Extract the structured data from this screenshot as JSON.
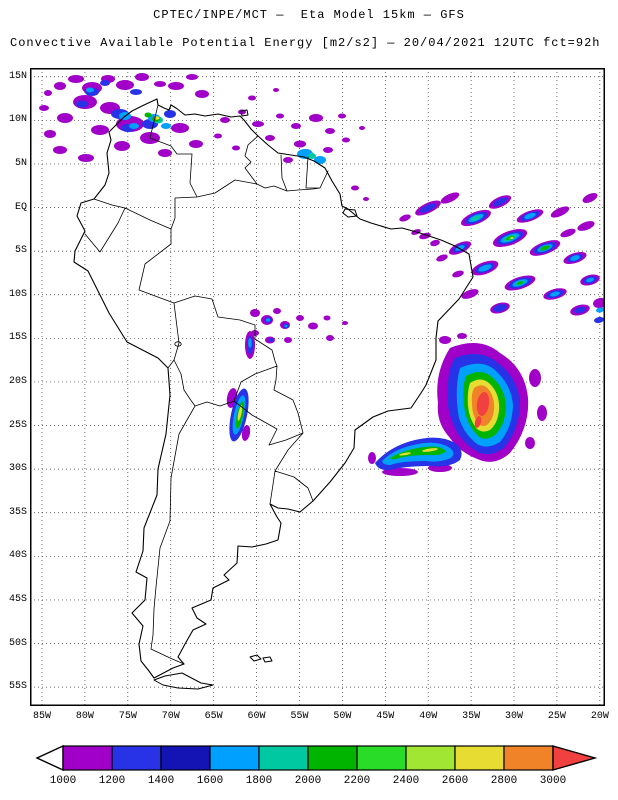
{
  "header": {
    "title": "CPTEC/INPE/MCT —  Eta Model 15km — GFS",
    "subtitle": "Convective Available Potential Energy [m2/s2] — 20/04/2021 12UTC fct=92h"
  },
  "map": {
    "lat_ticks": [
      {
        "label": "15N",
        "lat": 15
      },
      {
        "label": "10N",
        "lat": 10
      },
      {
        "label": "5N",
        "lat": 5
      },
      {
        "label": "EQ",
        "lat": 0
      },
      {
        "label": "5S",
        "lat": -5
      },
      {
        "label": "10S",
        "lat": -10
      },
      {
        "label": "15S",
        "lat": -15
      },
      {
        "label": "20S",
        "lat": -20
      },
      {
        "label": "25S",
        "lat": -25
      },
      {
        "label": "30S",
        "lat": -30
      },
      {
        "label": "35S",
        "lat": -35
      },
      {
        "label": "40S",
        "lat": -40
      },
      {
        "label": "45S",
        "lat": -45
      },
      {
        "label": "50S",
        "lat": -50
      },
      {
        "label": "55S",
        "lat": -55
      }
    ],
    "lon_ticks": [
      {
        "label": "85W",
        "lon": -85
      },
      {
        "label": "80W",
        "lon": -80
      },
      {
        "label": "75W",
        "lon": -75
      },
      {
        "label": "70W",
        "lon": -70
      },
      {
        "label": "65W",
        "lon": -65
      },
      {
        "label": "60W",
        "lon": -60
      },
      {
        "label": "55W",
        "lon": -55
      },
      {
        "label": "50W",
        "lon": -50
      },
      {
        "label": "45W",
        "lon": -45
      },
      {
        "label": "40W",
        "lon": -40
      },
      {
        "label": "35W",
        "lon": -35
      },
      {
        "label": "30W",
        "lon": -30
      },
      {
        "label": "25W",
        "lon": -25
      },
      {
        "label": "20W",
        "lon": -20
      }
    ]
  },
  "colorbar": {
    "labels": [
      "1000",
      "1200",
      "1400",
      "1600",
      "1800",
      "2000",
      "2200",
      "2400",
      "2600",
      "2800",
      "3000"
    ],
    "palette": [
      "#a000c8",
      "#2832e6",
      "#1414b4",
      "#00a0ff",
      "#00c8a0",
      "#00b400",
      "#28dc28",
      "#a0e632",
      "#e6dc32",
      "#f08228"
    ],
    "under_arrow_color": "#ffffff",
    "over_arrow_color": "#f04040"
  }
}
